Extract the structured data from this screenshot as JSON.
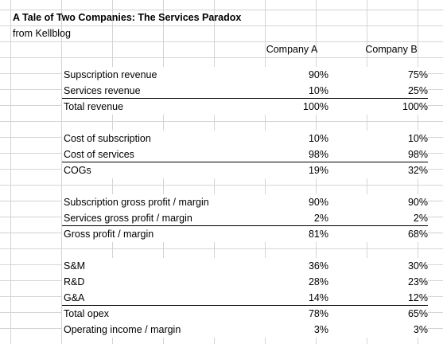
{
  "sheet": {
    "title": "A Tale of Two Companies:  The Services Paradox",
    "subtitle": "from Kellblog",
    "columns": {
      "a": "Company A",
      "b": "Company B"
    },
    "rows": [
      {
        "label": "Supscription revenue",
        "a": "90%",
        "b": "75%"
      },
      {
        "label": "Services revenue",
        "a": "10%",
        "b": "25%"
      },
      {
        "label": "Total revenue",
        "a": "100%",
        "b": "100%"
      },
      {
        "label": "Cost of subscription",
        "a": "10%",
        "b": "10%"
      },
      {
        "label": "Cost of services",
        "a": "98%",
        "b": "98%"
      },
      {
        "label": "COGs",
        "a": "19%",
        "b": "32%"
      },
      {
        "label": "Subscription gross profit / margin",
        "a": "90%",
        "b": "90%"
      },
      {
        "label": "Services gross profit / margin",
        "a": "2%",
        "b": "2%"
      },
      {
        "label": "Gross profit / margin",
        "a": "81%",
        "b": "68%"
      },
      {
        "label": "S&M",
        "a": "36%",
        "b": "30%"
      },
      {
        "label": "R&D",
        "a": "28%",
        "b": "23%"
      },
      {
        "label": "G&A",
        "a": "14%",
        "b": "12%"
      },
      {
        "label": "Total opex",
        "a": "78%",
        "b": "65%"
      },
      {
        "label": "Operating income / margin",
        "a": "3%",
        "b": "3%"
      }
    ]
  }
}
